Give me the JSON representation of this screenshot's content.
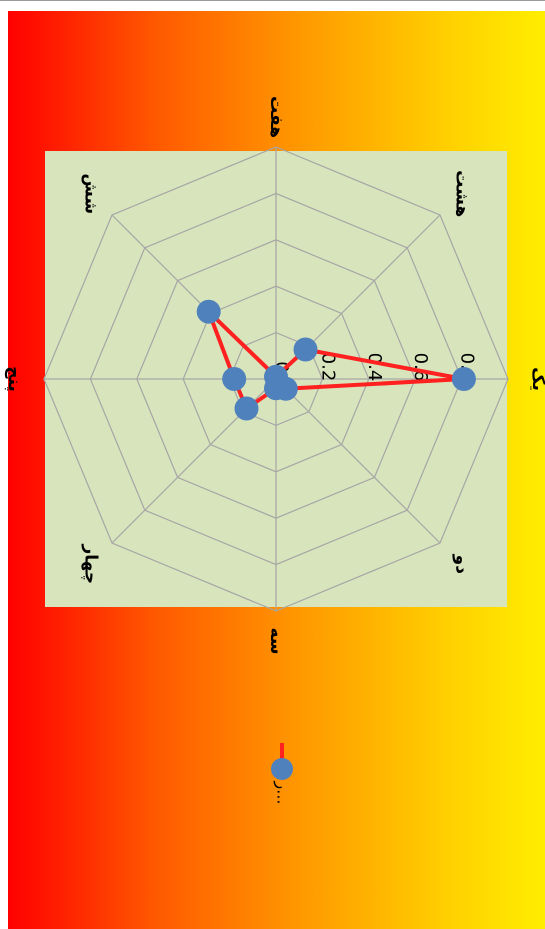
{
  "chart_data": {
    "type": "radar",
    "categories": [
      "یک",
      "دو",
      "سه",
      "چهار",
      "پنج",
      "شش",
      "هفت",
      "هشت"
    ],
    "series": [
      {
        "name": "ر...",
        "values": [
          0.81,
          0.06,
          0.04,
          0.18,
          0.18,
          0.41,
          0.01,
          0.18
        ]
      }
    ],
    "radial_ticks": [
      "0",
      "0.2",
      "0.4",
      "0.6",
      "0.8"
    ],
    "rlim": [
      0,
      1.0
    ],
    "grid": true,
    "legend_position": "bottom",
    "rotation": "90deg-clockwise",
    "colors": {
      "plot_area": "#d8e4bc",
      "grid": "#a6a6a6",
      "series_line": "#ff2020",
      "marker": "#4f81bd",
      "background_gradient": [
        "#ff0000",
        "#ff9a00",
        "#ffee00"
      ]
    }
  }
}
